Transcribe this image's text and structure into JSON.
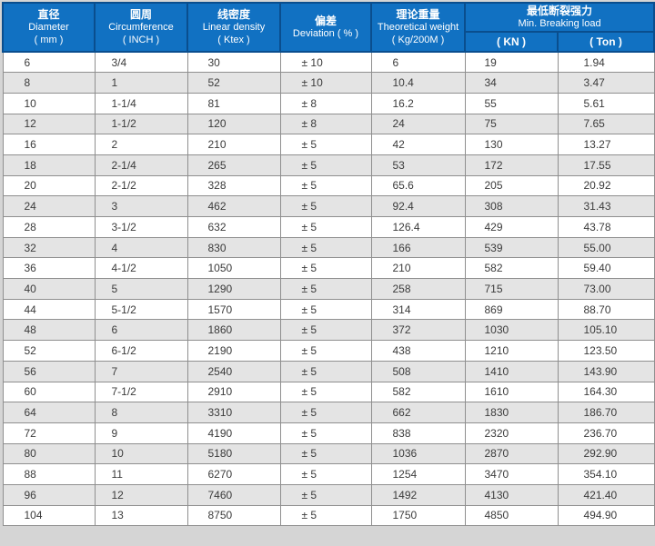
{
  "colors": {
    "header_bg": "#1171c2",
    "header_border": "#0a4e8e",
    "stripe": "#e4e4e4",
    "grid": "#8f8f8f",
    "text": "#3b3b3b",
    "page_bg": "#d5d5d5"
  },
  "table": {
    "headers": [
      {
        "zh": "直径",
        "en": "Diameter",
        "unit": "( mm )"
      },
      {
        "zh": "圆周",
        "en": "Circumference",
        "unit": "( INCH )"
      },
      {
        "zh": "线密度",
        "en": "Linear density",
        "unit": "( Ktex )"
      },
      {
        "zh": "偏差",
        "en": "Deviation ( % )"
      },
      {
        "zh": "理论重量",
        "en": "Theoretical weight",
        "unit": "( Kg/200M )"
      }
    ],
    "breaking_load": {
      "zh": "最低断裂强力",
      "en": "Min. Breaking load",
      "sub": [
        "( KN )",
        "( Ton )"
      ]
    },
    "rows": [
      [
        "6",
        "3/4",
        "30",
        "± 10",
        "6",
        "19",
        "1.94"
      ],
      [
        "8",
        "1",
        "52",
        "± 10",
        "10.4",
        "34",
        "3.47"
      ],
      [
        "10",
        "1-1/4",
        "81",
        "± 8",
        "16.2",
        "55",
        "5.61"
      ],
      [
        "12",
        "1-1/2",
        "120",
        "± 8",
        "24",
        "75",
        "7.65"
      ],
      [
        "16",
        "2",
        "210",
        "± 5",
        "42",
        "130",
        "13.27"
      ],
      [
        "18",
        "2-1/4",
        "265",
        "± 5",
        "53",
        "172",
        "17.55"
      ],
      [
        "20",
        "2-1/2",
        "328",
        "± 5",
        "65.6",
        "205",
        "20.92"
      ],
      [
        "24",
        "3",
        "462",
        "± 5",
        "92.4",
        "308",
        "31.43"
      ],
      [
        "28",
        "3-1/2",
        "632",
        "± 5",
        "126.4",
        "429",
        "43.78"
      ],
      [
        "32",
        "4",
        "830",
        "± 5",
        "166",
        "539",
        "55.00"
      ],
      [
        "36",
        "4-1/2",
        "1050",
        "± 5",
        "210",
        "582",
        "59.40"
      ],
      [
        "40",
        "5",
        "1290",
        "± 5",
        "258",
        "715",
        "73.00"
      ],
      [
        "44",
        "5-1/2",
        "1570",
        "± 5",
        "314",
        "869",
        "88.70"
      ],
      [
        "48",
        "6",
        "1860",
        "± 5",
        "372",
        "1030",
        "105.10"
      ],
      [
        "52",
        "6-1/2",
        "2190",
        "± 5",
        "438",
        "1210",
        "123.50"
      ],
      [
        "56",
        "7",
        "2540",
        "± 5",
        "508",
        "1410",
        "143.90"
      ],
      [
        "60",
        "7-1/2",
        "2910",
        "± 5",
        "582",
        "1610",
        "164.30"
      ],
      [
        "64",
        "8",
        "3310",
        "± 5",
        "662",
        "1830",
        "186.70"
      ],
      [
        "72",
        "9",
        "4190",
        "± 5",
        "838",
        "2320",
        "236.70"
      ],
      [
        "80",
        "10",
        "5180",
        "± 5",
        "1036",
        "2870",
        "292.90"
      ],
      [
        "88",
        "11",
        "6270",
        "± 5",
        "1254",
        "3470",
        "354.10"
      ],
      [
        "96",
        "12",
        "7460",
        "± 5",
        "1492",
        "4130",
        "421.40"
      ],
      [
        "104",
        "13",
        "8750",
        "± 5",
        "1750",
        "4850",
        "494.90"
      ]
    ]
  }
}
